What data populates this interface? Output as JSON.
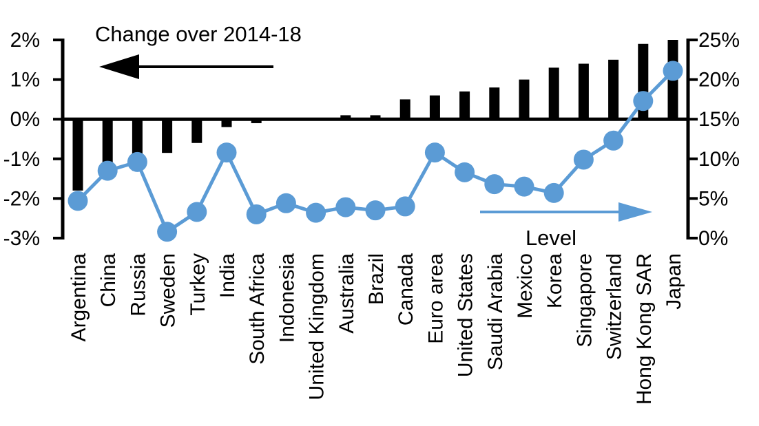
{
  "chart_data": {
    "type": "bar",
    "subtype": "combo-bar-line-dual-axis",
    "title": "Change over 2014-18",
    "annotations": {
      "bar_series_label": "Change over 2014-18",
      "bar_series_arrow": "points-left-to-left-axis",
      "line_series_label": "Level",
      "line_series_arrow": "points-right-to-right-axis"
    },
    "categories": [
      "Argentina",
      "China",
      "Russia",
      "Sweden",
      "Turkey",
      "India",
      "South Africa",
      "Indonesia",
      "United Kingdom",
      "Australia",
      "Brazil",
      "Canada",
      "Euro area",
      "United States",
      "Saudi Arabia",
      "Mexico",
      "Korea",
      "Singapore",
      "Switzerland",
      "Hong Kong SAR",
      "Japan"
    ],
    "series": [
      {
        "name": "Change over 2014-18",
        "type": "bar",
        "axis": "left",
        "color": "#000000",
        "values": [
          -1.8,
          -1.5,
          -1.3,
          -0.85,
          -0.6,
          -0.2,
          -0.1,
          0,
          0,
          0.1,
          0.1,
          0.5,
          0.6,
          0.7,
          0.8,
          1.0,
          1.3,
          1.4,
          1.5,
          1.9,
          2.0
        ]
      },
      {
        "name": "Level",
        "type": "line",
        "axis": "right",
        "color": "#5B9BD5",
        "values": [
          4.7,
          8.5,
          9.6,
          0.8,
          3.3,
          10.8,
          3.0,
          4.4,
          3.2,
          3.9,
          3.5,
          4.0,
          10.8,
          8.3,
          6.8,
          6.5,
          5.7,
          9.9,
          12.3,
          17.3,
          21.1
        ]
      }
    ],
    "left_axis": {
      "min": -3,
      "max": 2,
      "tick_step": 1,
      "tick_labels": [
        "2%",
        "1%",
        "0%",
        "-1%",
        "-2%",
        "-3%"
      ],
      "label_format": "percent"
    },
    "right_axis": {
      "min": 0,
      "max": 25,
      "tick_step": 5,
      "tick_labels": [
        "25%",
        "20%",
        "15%",
        "10%",
        "5%",
        "0%"
      ],
      "label_format": "percent"
    },
    "grid": false,
    "legend_position": "in-plot-annotations",
    "category_label_rotation_deg": 90
  }
}
